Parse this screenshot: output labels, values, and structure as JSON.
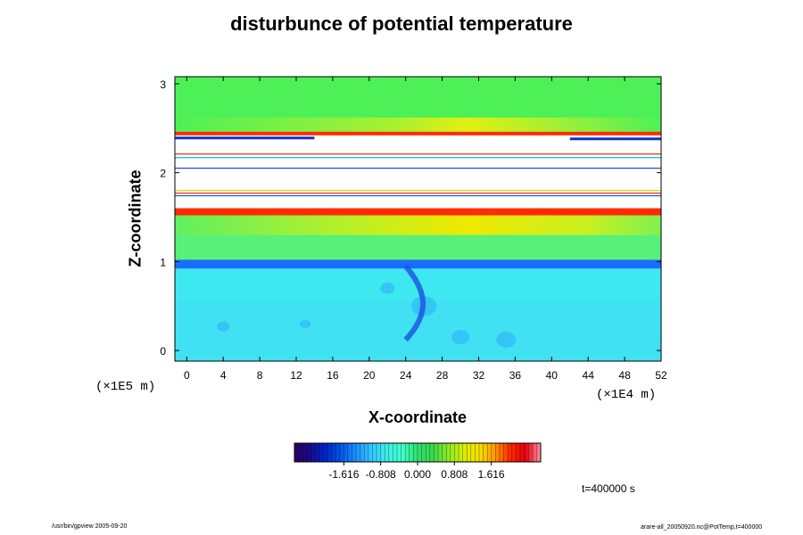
{
  "chart_data": {
    "type": "heatmap",
    "title": "disturbunce of potential temperature",
    "xlabel": "X-coordinate",
    "ylabel": "Z-coordinate",
    "x_unit_label": "(×1E4 m)",
    "y_unit_label": "(×1E5 m)",
    "xlim": [
      -1.3,
      52
    ],
    "ylim": [
      -0.12,
      3.08
    ],
    "x_ticks": [
      "0",
      "4",
      "8",
      "12",
      "16",
      "20",
      "24",
      "28",
      "32",
      "36",
      "40",
      "44",
      "48",
      "52"
    ],
    "y_ticks": [
      "0",
      "1",
      "2",
      "3"
    ],
    "colorbar": {
      "ticks": [
        "-1.616",
        "-0.808",
        "0.000",
        "0.808",
        "1.616"
      ],
      "range": [
        -2.7,
        2.7
      ],
      "colors": [
        "#2a0060",
        "#1a0a8a",
        "#0026c8",
        "#0055e8",
        "#1e90ff",
        "#32c8ff",
        "#3ef0e8",
        "#40ffc8",
        "#2ee070",
        "#3cd84a",
        "#8cec2a",
        "#d8f000",
        "#f8e000",
        "#ff9a00",
        "#ff2a00",
        "#e80010",
        "#ff90a0"
      ]
    },
    "bands": [
      {
        "z_from": 2.55,
        "z_to": 3.08,
        "value": 0.35,
        "description_color": "#4cf050"
      },
      {
        "z_from": 2.45,
        "z_to": 2.62,
        "value": 0.9,
        "description_color": "#d8f000"
      },
      {
        "z_from": 2.42,
        "z_to": 2.46,
        "value": 1.9,
        "description_color": "#ff2a00"
      },
      {
        "z_from": 1.78,
        "z_to": 2.22,
        "value": null,
        "description_color": "#ffffff"
      },
      {
        "z_from": 1.52,
        "z_to": 1.6,
        "value": 1.9,
        "description_color": "#ff2a00"
      },
      {
        "z_from": 1.3,
        "z_to": 1.52,
        "value": 0.6,
        "description_color": "#aaee20"
      },
      {
        "z_from": 1.0,
        "z_to": 1.3,
        "value": 0.2,
        "description_color": "#40ff80"
      },
      {
        "z_from": 0.92,
        "z_to": 1.02,
        "value": -1.0,
        "description_color": "#0066ff"
      },
      {
        "z_from": -0.12,
        "z_to": 0.92,
        "value": -0.5,
        "description_color": "#3ee8ff"
      }
    ]
  },
  "labels": {
    "time": "t=400000 s",
    "footer_left": "/usr/bin/gpview 2005-09-20",
    "footer_right": "arare-all_20050920.nc@PotTemp,t=400000"
  }
}
